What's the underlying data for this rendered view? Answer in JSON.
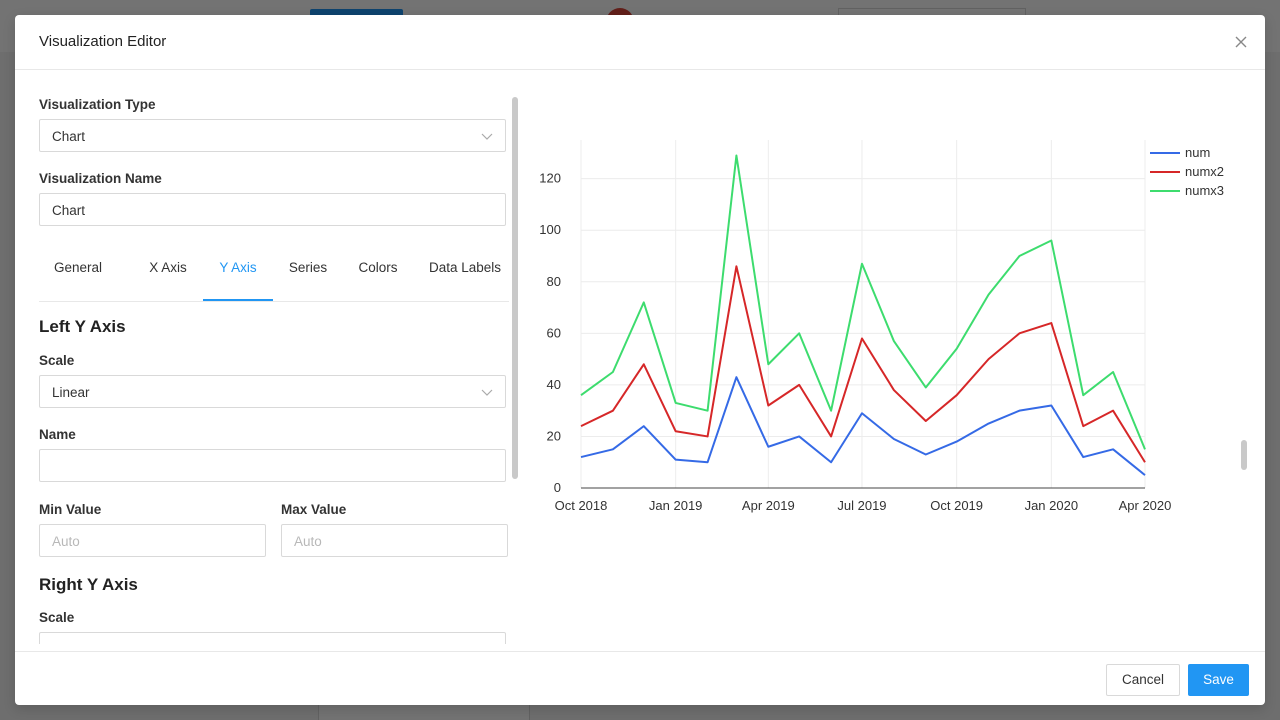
{
  "modal": {
    "title": "Visualization Editor"
  },
  "form": {
    "visualization_type": {
      "label": "Visualization Type",
      "value": "Chart"
    },
    "visualization_name": {
      "label": "Visualization Name",
      "value": "Chart"
    },
    "tabs": [
      {
        "label": "General",
        "active": false
      },
      {
        "label": "X Axis",
        "active": false
      },
      {
        "label": "Y Axis",
        "active": true
      },
      {
        "label": "Series",
        "active": false
      },
      {
        "label": "Colors",
        "active": false
      },
      {
        "label": "Data Labels",
        "active": false
      }
    ],
    "left_y_axis": {
      "title": "Left Y Axis",
      "scale_label": "Scale",
      "scale_value": "Linear",
      "name_label": "Name",
      "name_value": "",
      "min_label": "Min Value",
      "min_placeholder": "Auto",
      "max_label": "Max Value",
      "max_placeholder": "Auto"
    },
    "right_y_axis": {
      "title": "Right Y Axis",
      "scale_label": "Scale"
    }
  },
  "footer": {
    "cancel_label": "Cancel",
    "save_label": "Save"
  },
  "colors": {
    "accent": "#2196f3",
    "num": "#356ae6",
    "numx2": "#d62728",
    "numx3": "#3ddc6e"
  },
  "chart_data": {
    "type": "line",
    "x": [
      "2018-10-01",
      "2018-11-01",
      "2018-12-01",
      "2019-01-01",
      "2019-02-01",
      "2019-03-01",
      "2019-04-01",
      "2019-05-01",
      "2019-06-01",
      "2019-07-01",
      "2019-08-01",
      "2019-09-01",
      "2019-10-01",
      "2019-11-01",
      "2019-12-01",
      "2020-01-01",
      "2020-02-01",
      "2020-03-01",
      "2020-04-01"
    ],
    "x_ticks": [
      "Oct 2018",
      "Jan 2019",
      "Apr 2019",
      "Jul 2019",
      "Oct 2019",
      "Jan 2020",
      "Apr 2020"
    ],
    "x_tick_dates": [
      "2018-10-01",
      "2019-01-01",
      "2019-04-01",
      "2019-07-01",
      "2019-10-01",
      "2020-01-01",
      "2020-04-01"
    ],
    "y_ticks": [
      0,
      20,
      40,
      60,
      80,
      100,
      120
    ],
    "ylim": [
      0,
      135
    ],
    "grid": true,
    "legend": "top-right",
    "series": [
      {
        "name": "num",
        "values": [
          12,
          15,
          24,
          11,
          10,
          43,
          16,
          20,
          10,
          29,
          19,
          13,
          18,
          25,
          30,
          32,
          12,
          15,
          5
        ]
      },
      {
        "name": "numx2",
        "values": [
          24,
          30,
          48,
          22,
          20,
          86,
          32,
          40,
          20,
          58,
          38,
          26,
          36,
          50,
          60,
          64,
          24,
          30,
          10
        ]
      },
      {
        "name": "numx3",
        "values": [
          36,
          45,
          72,
          33,
          30,
          129,
          48,
          60,
          30,
          87,
          57,
          39,
          54,
          75,
          90,
          96,
          36,
          45,
          15
        ]
      }
    ]
  }
}
